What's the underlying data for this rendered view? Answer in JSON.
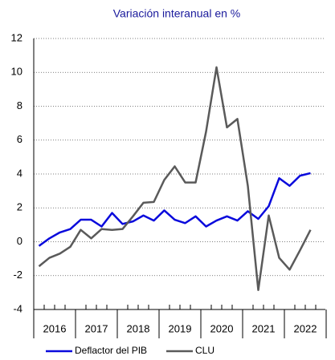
{
  "chart_data": {
    "type": "line",
    "title": "Variación interanual en %",
    "categories": [
      null,
      null,
      null,
      null,
      null,
      null,
      null,
      null,
      null,
      null,
      null,
      null,
      null,
      null,
      null,
      null,
      null,
      null,
      null,
      null,
      null,
      null,
      null,
      null,
      null,
      null,
      null
    ],
    "year_labels": [
      "2016",
      "2017",
      "2018",
      "2019",
      "2020",
      "2021",
      "2022"
    ],
    "series": [
      {
        "name": "Deflactor del PIB",
        "color": "#0a0adc",
        "values": [
          -0.25,
          0.2,
          0.55,
          0.75,
          1.3,
          1.3,
          0.9,
          1.7,
          1.05,
          1.2,
          1.55,
          1.25,
          1.85,
          1.3,
          1.1,
          1.5,
          0.9,
          1.25,
          1.5,
          1.25,
          1.8,
          1.35,
          2.1,
          3.75,
          3.3,
          3.9,
          4.05
        ]
      },
      {
        "name": "CLU",
        "color": "#5a5a5a",
        "values": [
          -1.45,
          -0.95,
          -0.7,
          -0.3,
          0.7,
          0.2,
          0.75,
          0.7,
          0.75,
          1.5,
          2.3,
          2.35,
          3.65,
          4.45,
          3.5,
          3.5,
          6.5,
          10.3,
          6.75,
          7.25,
          3.3,
          -2.85,
          1.55,
          -0.95,
          -1.65,
          -0.5,
          0.7
        ]
      }
    ],
    "ylim": [
      -4,
      12
    ],
    "yticks": [
      -4,
      -2,
      0,
      2,
      4,
      6,
      8,
      10,
      12
    ],
    "grid": true
  }
}
